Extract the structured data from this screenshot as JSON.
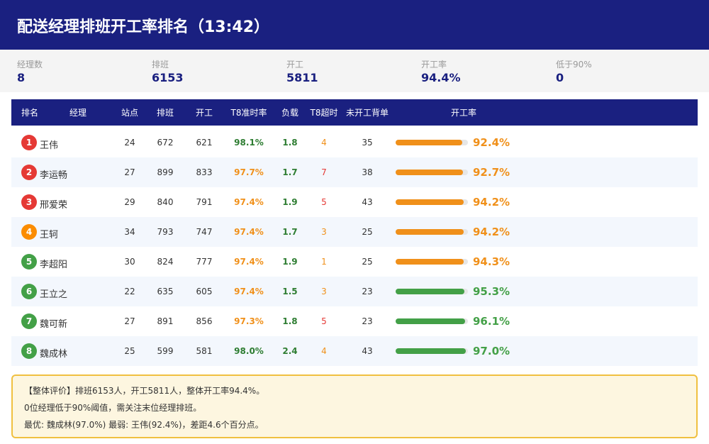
{
  "header": {
    "title": "配送经理排班开工率排名（13:42）"
  },
  "stats": [
    {
      "label": "经理数",
      "value": 8
    },
    {
      "label": "排班",
      "value": 6153
    },
    {
      "label": "开工",
      "value": 5811
    },
    {
      "label": "开工率",
      "value": "94.4%"
    },
    {
      "label": "低于90%",
      "value": 0
    }
  ],
  "table": {
    "columns": [
      "排名",
      "经理",
      "站点",
      "排班",
      "开工",
      "T8准时率",
      "负载",
      "T8超时",
      "未开工背单",
      "开工率"
    ],
    "rows": [
      {
        "rank": 1,
        "name": "王伟",
        "sites": 24,
        "scheduled": 672,
        "started": 621,
        "on_time": "98.1%",
        "load": 1.8,
        "overtime": 4,
        "backlog": 35,
        "rate": {
          "value": 92.4,
          "label": "92.4%"
        },
        "badge_color": "#e53935",
        "on_time_color": "#2e7d32",
        "overtime_color": "#f0901a",
        "rate_color": "#f0901a"
      },
      {
        "rank": 2,
        "name": "李运畅",
        "sites": 27,
        "scheduled": 899,
        "started": 833,
        "on_time": "97.7%",
        "load": 1.7,
        "overtime": 7,
        "backlog": 38,
        "rate": {
          "value": 92.7,
          "label": "92.7%"
        },
        "badge_color": "#e53935",
        "on_time_color": "#f0901a",
        "overtime_color": "#e53935",
        "rate_color": "#f0901a"
      },
      {
        "rank": 3,
        "name": "邢爱荣",
        "sites": 29,
        "scheduled": 840,
        "started": 791,
        "on_time": "97.4%",
        "load": 1.9,
        "overtime": 5,
        "backlog": 43,
        "rate": {
          "value": 94.2,
          "label": "94.2%"
        },
        "badge_color": "#e53935",
        "on_time_color": "#f0901a",
        "overtime_color": "#e53935",
        "rate_color": "#f0901a"
      },
      {
        "rank": 4,
        "name": "王轲",
        "sites": 34,
        "scheduled": 793,
        "started": 747,
        "on_time": "97.4%",
        "load": 1.7,
        "overtime": 3,
        "backlog": 25,
        "rate": {
          "value": 94.2,
          "label": "94.2%"
        },
        "badge_color": "#fb8c00",
        "on_time_color": "#f0901a",
        "overtime_color": "#f0901a",
        "rate_color": "#f0901a"
      },
      {
        "rank": 5,
        "name": "李超阳",
        "sites": 30,
        "scheduled": 824,
        "started": 777,
        "on_time": "97.4%",
        "load": 1.9,
        "overtime": 1,
        "backlog": 25,
        "rate": {
          "value": 94.3,
          "label": "94.3%"
        },
        "badge_color": "#43a047",
        "on_time_color": "#f0901a",
        "overtime_color": "#f0901a",
        "rate_color": "#f0901a"
      },
      {
        "rank": 6,
        "name": "王立之",
        "sites": 22,
        "scheduled": 635,
        "started": 605,
        "on_time": "97.4%",
        "load": 1.5,
        "overtime": 3,
        "backlog": 23,
        "rate": {
          "value": 95.3,
          "label": "95.3%"
        },
        "badge_color": "#43a047",
        "on_time_color": "#f0901a",
        "overtime_color": "#f0901a",
        "rate_color": "#43a047"
      },
      {
        "rank": 7,
        "name": "魏可新",
        "sites": 27,
        "scheduled": 891,
        "started": 856,
        "on_time": "97.3%",
        "load": 1.8,
        "overtime": 5,
        "backlog": 23,
        "rate": {
          "value": 96.1,
          "label": "96.1%"
        },
        "badge_color": "#43a047",
        "on_time_color": "#f0901a",
        "overtime_color": "#e53935",
        "rate_color": "#43a047"
      },
      {
        "rank": 8,
        "name": "魏成林",
        "sites": 25,
        "scheduled": 599,
        "started": 581,
        "on_time": "98.0%",
        "load": 2.4,
        "overtime": 4,
        "backlog": 43,
        "rate": {
          "value": 97.0,
          "label": "97.0%"
        },
        "badge_color": "#43a047",
        "on_time_color": "#2e7d32",
        "overtime_color": "#f0901a",
        "rate_color": "#43a047"
      }
    ]
  },
  "footer": {
    "lines": [
      "【整体评价】排班6153人，开工5811人，整体开工率94.4%。",
      "0位经理低于90%阈值，需关注末位经理排班。",
      "最优: 魏成林(97.0%)  最弱: 王伟(92.4%)，差距4.6个百分点。"
    ]
  }
}
